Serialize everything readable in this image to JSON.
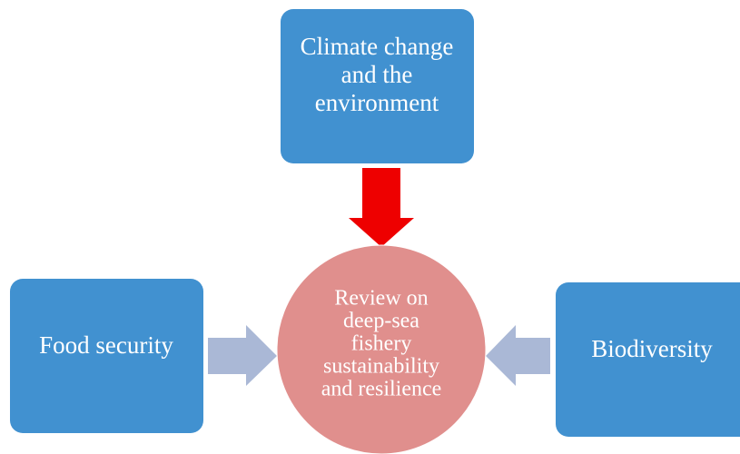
{
  "nodes": [
    {
      "lines": [
        "Climate change",
        "and the",
        "environment"
      ]
    },
    {
      "lines": [
        "Food security"
      ]
    },
    {
      "lines": [
        "Biodiversity"
      ]
    },
    {
      "lines": [
        "Review on",
        "deep-sea",
        "fishery",
        "sustainability",
        "and resilience"
      ]
    }
  ]
}
